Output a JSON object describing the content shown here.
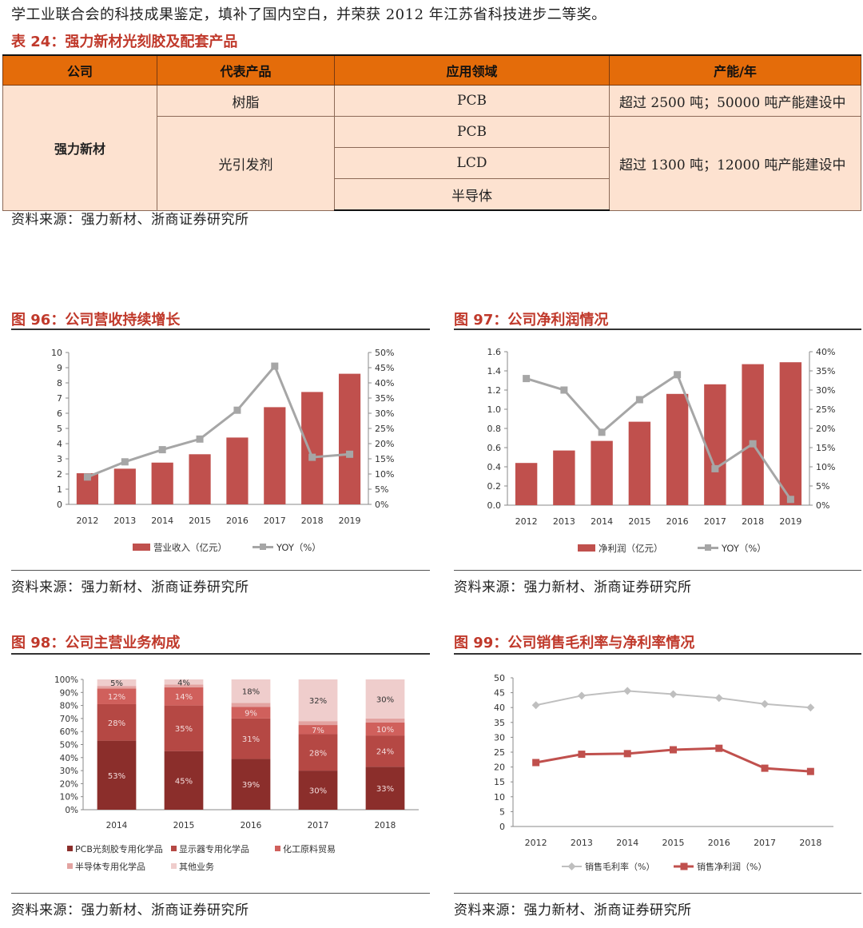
{
  "intro_text": "学工业联合会的科技成果鉴定，填补了国内空白，并荣获 2012 年江苏省科技进步二等奖。",
  "table": {
    "title": "表 24：强力新材光刻胶及配套产品",
    "headers": [
      "公司",
      "代表产品",
      "应用领域",
      "产能/年"
    ],
    "company": "强力新材",
    "product1": "树脂",
    "product2": "光引发剂",
    "app1": "PCB",
    "app2": "PCB",
    "app3": "LCD",
    "app4": "半导体",
    "cap1": "超过 2500 吨；50000 吨产能建设中",
    "cap2": "超过 1300 吨；12000 吨产能建设中",
    "source": "资料来源：强力新材、浙商证券研究所"
  },
  "fig96": {
    "title": "图 96：公司营收持续增长",
    "source": "资料来源：强力新材、浙商证券研究所"
  },
  "fig97": {
    "title": "图 97：公司净利润情况",
    "source": "资料来源：强力新材、浙商证券研究所"
  },
  "fig98": {
    "title": "图 98：公司主营业务构成",
    "source": "资料来源：强力新材、浙商证券研究所"
  },
  "fig99": {
    "title": "图 99：公司销售毛利率与净利率情况",
    "source": "资料来源：强力新材、浙商证券研究所"
  },
  "colors": {
    "bar_red": "#c0504d",
    "line_gray": "#a6a6a6",
    "title_red": "#c0392b",
    "header_orange": "#e46c0a"
  },
  "chart_data": [
    {
      "id": "fig96",
      "type": "bar+line",
      "categories": [
        "2012",
        "2013",
        "2014",
        "2015",
        "2016",
        "2017",
        "2018",
        "2019"
      ],
      "series": [
        {
          "name": "营业收入（亿元）",
          "type": "bar",
          "axis": "left",
          "values": [
            2.05,
            2.35,
            2.75,
            3.3,
            4.4,
            6.4,
            7.4,
            8.6
          ]
        },
        {
          "name": "YOY（%）",
          "type": "line",
          "axis": "right",
          "values": [
            9,
            14,
            18,
            21.5,
            31,
            45.5,
            15.5,
            16.5
          ]
        }
      ],
      "yleft": {
        "min": 0,
        "max": 10,
        "ticks": [
          "0",
          "1",
          "2",
          "3",
          "4",
          "5",
          "6",
          "7",
          "8",
          "9",
          "10"
        ]
      },
      "yright": {
        "min": 0,
        "max": 50,
        "ticks": [
          "0%",
          "5%",
          "10%",
          "15%",
          "20%",
          "25%",
          "30%",
          "35%",
          "40%",
          "45%",
          "50%"
        ]
      },
      "legend": [
        "营业收入（亿元）",
        "YOY（%）"
      ]
    },
    {
      "id": "fig97",
      "type": "bar+line",
      "categories": [
        "2012",
        "2013",
        "2014",
        "2015",
        "2016",
        "2017",
        "2018",
        "2019"
      ],
      "series": [
        {
          "name": "净利润（亿元）",
          "type": "bar",
          "axis": "left",
          "values": [
            0.44,
            0.57,
            0.67,
            0.87,
            1.16,
            1.26,
            1.47,
            1.49
          ]
        },
        {
          "name": "YOY（%）",
          "type": "line",
          "axis": "right",
          "values": [
            33,
            30,
            19,
            27.5,
            34,
            9.5,
            16,
            1.5
          ]
        }
      ],
      "yleft": {
        "min": 0,
        "max": 1.6,
        "ticks": [
          "0.0",
          "0.2",
          "0.4",
          "0.6",
          "0.8",
          "1.0",
          "1.2",
          "1.4",
          "1.6"
        ]
      },
      "yright": {
        "min": 0,
        "max": 40,
        "ticks": [
          "0%",
          "5%",
          "10%",
          "15%",
          "20%",
          "25%",
          "30%",
          "35%",
          "40%"
        ]
      },
      "legend": [
        "净利润（亿元）",
        "YOY（%）"
      ]
    },
    {
      "id": "fig98",
      "type": "stacked-bar",
      "categories": [
        "2014",
        "2015",
        "2016",
        "2017",
        "2018"
      ],
      "series": [
        {
          "name": "PCB光刻胶专用化学品",
          "values": [
            53,
            45,
            39,
            30,
            33
          ],
          "labels": [
            "53%",
            "45%",
            "39%",
            "30%",
            "33%"
          ],
          "color": "#8b2e2b"
        },
        {
          "name": "显示器专用化学品",
          "values": [
            28,
            35,
            31,
            28,
            24
          ],
          "labels": [
            "28%",
            "35%",
            "31%",
            "28%",
            "24%"
          ],
          "color": "#b54844"
        },
        {
          "name": "化工原料贸易",
          "values": [
            12,
            14,
            9,
            7,
            10
          ],
          "labels": [
            "12%",
            "14%",
            "9%",
            "7%",
            "10%"
          ],
          "color": "#d0605c"
        },
        {
          "name": "半导体专用化学品",
          "values": [
            2,
            2,
            3,
            3,
            3
          ],
          "labels": [
            "",
            "",
            "",
            "",
            ""
          ],
          "color": "#e3a3a1"
        },
        {
          "name": "其他业务",
          "values": [
            5,
            4,
            18,
            32,
            30
          ],
          "labels": [
            "5%",
            "4%",
            "18%",
            "32%",
            "30%"
          ],
          "color": "#efcdcc"
        }
      ],
      "yaxis": {
        "min": 0,
        "max": 100,
        "ticks": [
          "0%",
          "10%",
          "20%",
          "30%",
          "40%",
          "50%",
          "60%",
          "70%",
          "80%",
          "90%",
          "100%"
        ]
      },
      "legend": [
        "PCB光刻胶专用化学品",
        "显示器专用化学品",
        "化工原料贸易",
        "半导体专用化学品",
        "其他业务"
      ]
    },
    {
      "id": "fig99",
      "type": "line",
      "categories": [
        "2012",
        "2013",
        "2014",
        "2015",
        "2016",
        "2017",
        "2018"
      ],
      "series": [
        {
          "name": "销售毛利率（%）",
          "values": [
            40.8,
            44.0,
            45.6,
            44.5,
            43.2,
            41.2,
            40.0
          ],
          "color": "#bfbfbf"
        },
        {
          "name": "销售净利润（%）",
          "values": [
            21.5,
            24.3,
            24.5,
            25.8,
            26.3,
            19.6,
            18.5
          ],
          "color": "#c0504d"
        }
      ],
      "yaxis": {
        "min": 0,
        "max": 50,
        "ticks": [
          "0",
          "5",
          "10",
          "15",
          "20",
          "25",
          "30",
          "35",
          "40",
          "45",
          "50"
        ]
      },
      "legend": [
        "销售毛利率（%）",
        "销售净利润（%）"
      ]
    }
  ]
}
